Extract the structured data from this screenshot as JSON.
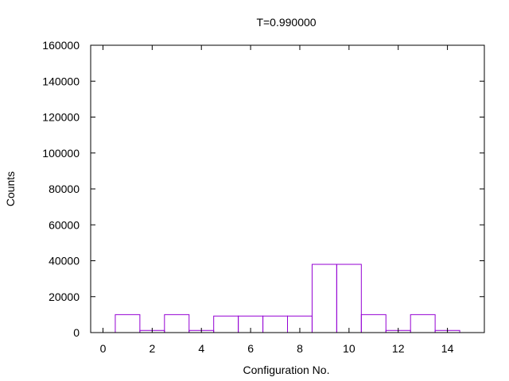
{
  "chart_data": {
    "type": "bar",
    "title": "T=0.990000",
    "xlabel": "Configuration No.",
    "ylabel": "Counts",
    "xlim": [
      -0.5,
      15.5
    ],
    "ylim": [
      0,
      160000
    ],
    "xticks": [
      0,
      2,
      4,
      6,
      8,
      10,
      12,
      14
    ],
    "yticks": [
      0,
      20000,
      40000,
      60000,
      80000,
      100000,
      120000,
      140000,
      160000
    ],
    "bar_width": 1,
    "x": [
      1,
      2,
      3,
      4,
      5,
      6,
      7,
      8,
      9,
      10,
      11,
      12,
      13,
      14
    ],
    "values": [
      10000,
      1200,
      10000,
      1200,
      9200,
      9200,
      9200,
      9200,
      38000,
      38000,
      10000,
      1200,
      10000,
      1200
    ],
    "grid": false,
    "colors": {
      "bar_stroke": "#9400d3",
      "axis": "#000000"
    }
  }
}
